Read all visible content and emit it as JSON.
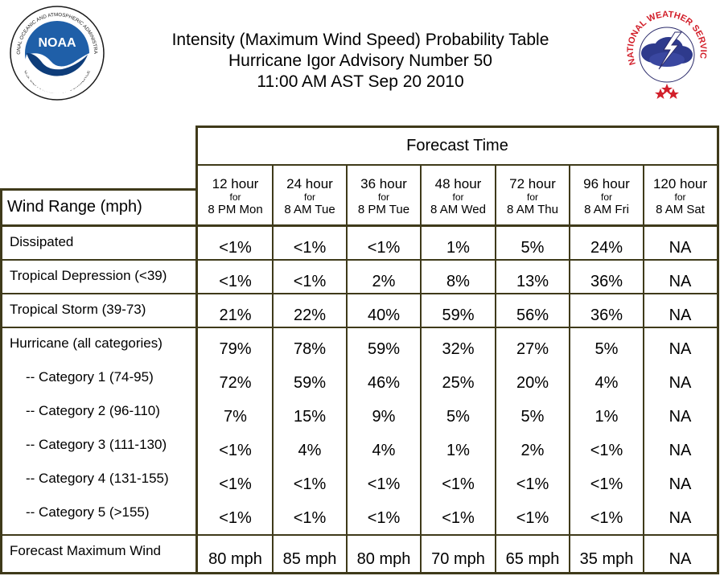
{
  "header": {
    "title_line1": "Intensity (Maximum Wind Speed) Probability Table",
    "title_line2": "Hurricane Igor Advisory Number 50",
    "title_line3": "11:00 AM AST Sep 20 2010",
    "noaa_logo": {
      "text": "NOAA",
      "ring_text": "NATIONAL OCEANIC AND ATMOSPHERIC ADMINISTRATION",
      "ring_bottom": "U.S. DEPARTMENT OF COMMERCE",
      "icon": "noaa-logo-icon"
    },
    "nws_logo": {
      "ring_text": "NATIONAL WEATHER SERVICE",
      "icon": "nws-logo-icon"
    }
  },
  "table": {
    "forecast_time_label": "Forecast Time",
    "wind_range_label": "Wind Range (mph)",
    "columns": [
      {
        "hour": "12 hour",
        "for": "for",
        "when": "8 PM Mon"
      },
      {
        "hour": "24 hour",
        "for": "for",
        "when": "8 AM Tue"
      },
      {
        "hour": "36 hour",
        "for": "for",
        "when": "8 PM Tue"
      },
      {
        "hour": "48 hour",
        "for": "for",
        "when": "8 AM Wed"
      },
      {
        "hour": "72 hour",
        "for": "for",
        "when": "8 AM Thu"
      },
      {
        "hour": "96 hour",
        "for": "for",
        "when": "8 AM Fri"
      },
      {
        "hour": "120 hour",
        "for": "for",
        "when": "8 AM Sat"
      }
    ],
    "rows": [
      {
        "label": "Dissipated",
        "values": [
          "<1%",
          "<1%",
          "<1%",
          "1%",
          "5%",
          "24%",
          "NA"
        ]
      },
      {
        "label": "Tropical Depression (<39)",
        "values": [
          "<1%",
          "<1%",
          "2%",
          "8%",
          "13%",
          "36%",
          "NA"
        ]
      },
      {
        "label": "Tropical Storm (39-73)",
        "values": [
          "21%",
          "22%",
          "40%",
          "59%",
          "56%",
          "36%",
          "NA"
        ]
      },
      {
        "label": "Hurricane (all categories)",
        "values": [
          "79%",
          "78%",
          "59%",
          "32%",
          "27%",
          "5%",
          "NA"
        ]
      },
      {
        "label": "-- Category 1 (74-95)",
        "values": [
          "72%",
          "59%",
          "46%",
          "25%",
          "20%",
          "4%",
          "NA"
        ]
      },
      {
        "label": "-- Category 2 (96-110)",
        "values": [
          "7%",
          "15%",
          "9%",
          "5%",
          "5%",
          "1%",
          "NA"
        ]
      },
      {
        "label": "-- Category 3 (111-130)",
        "values": [
          "<1%",
          "4%",
          "4%",
          "1%",
          "2%",
          "<1%",
          "NA"
        ]
      },
      {
        "label": "-- Category 4 (131-155)",
        "values": [
          "<1%",
          "<1%",
          "<1%",
          "<1%",
          "<1%",
          "<1%",
          "NA"
        ]
      },
      {
        "label": "-- Category 5 (>155)",
        "values": [
          "<1%",
          "<1%",
          "<1%",
          "<1%",
          "<1%",
          "<1%",
          "NA"
        ]
      },
      {
        "label": "Forecast Maximum Wind",
        "values": [
          "80 mph",
          "85 mph",
          "80 mph",
          "70 mph",
          "65 mph",
          "35 mph",
          "NA"
        ]
      }
    ]
  },
  "colors": {
    "frame": "#3f3a1a",
    "noaa_blue": "#1f5fa8",
    "nws_red": "#d21f2a"
  }
}
